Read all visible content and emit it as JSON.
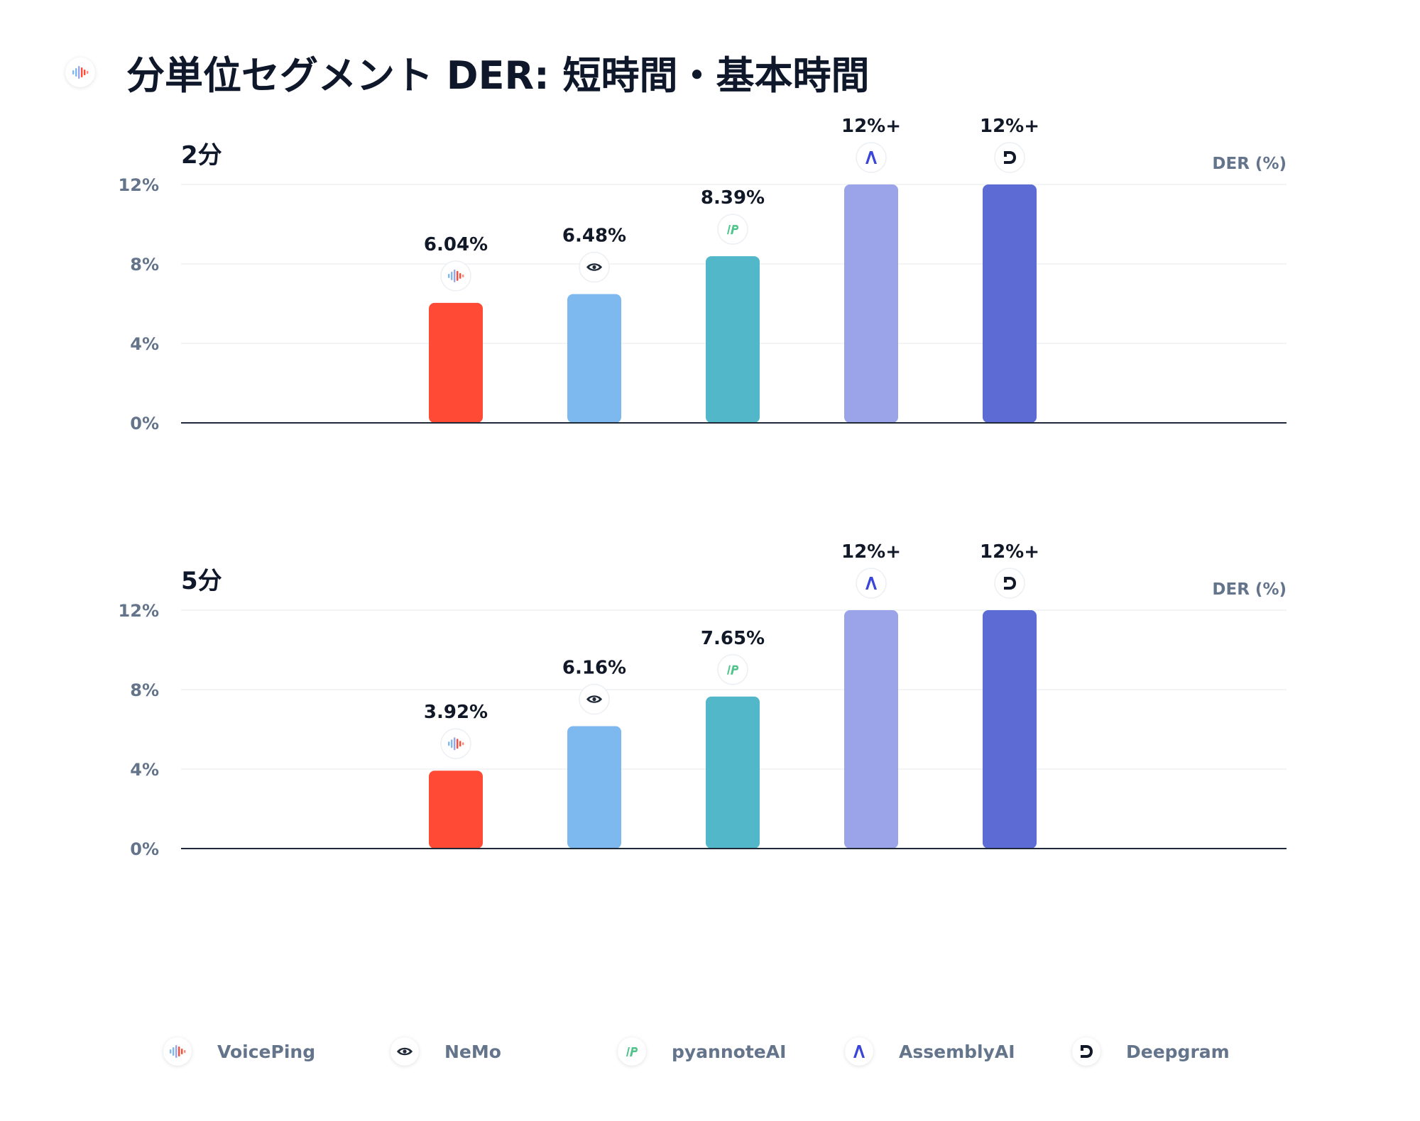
{
  "title": "分単位セグメント DER: 短時間・基本時間",
  "chart_data": [
    {
      "type": "bar",
      "title": "2分",
      "ylabel": "DER (%)",
      "ylim": [
        0,
        12
      ],
      "yticks": [
        "0%",
        "4%",
        "8%",
        "12%"
      ],
      "categories": [
        "VoicePing",
        "NeMo",
        "pyannoteAI",
        "AssemblyAI",
        "Deepgram"
      ],
      "values": [
        6.04,
        6.48,
        8.39,
        12,
        12
      ],
      "value_labels": [
        "6.04%",
        "6.48%",
        "8.39%",
        "12%+",
        "12%+"
      ]
    },
    {
      "type": "bar",
      "title": "5分",
      "ylabel": "DER (%)",
      "ylim": [
        0,
        12
      ],
      "yticks": [
        "0%",
        "4%",
        "8%",
        "12%"
      ],
      "categories": [
        "VoicePing",
        "NeMo",
        "pyannoteAI",
        "AssemblyAI",
        "Deepgram"
      ],
      "values": [
        3.92,
        6.16,
        7.65,
        12,
        12
      ],
      "value_labels": [
        "3.92%",
        "6.16%",
        "7.65%",
        "12%+",
        "12%+"
      ]
    }
  ],
  "vendors": [
    {
      "label": "VoicePing",
      "color": "#ff4b36",
      "icon": "voiceping-icon"
    },
    {
      "label": "NeMo",
      "color": "#7db9ef",
      "icon": "nvidia-eye-icon"
    },
    {
      "label": "pyannoteAI",
      "color": "#52b7c8",
      "icon": "pyannote-icon"
    },
    {
      "label": "AssemblyAI",
      "color": "#9ba4e9",
      "icon": "assemblyai-icon"
    },
    {
      "label": "Deepgram",
      "color": "#5c6cd4",
      "icon": "deepgram-icon"
    }
  ]
}
